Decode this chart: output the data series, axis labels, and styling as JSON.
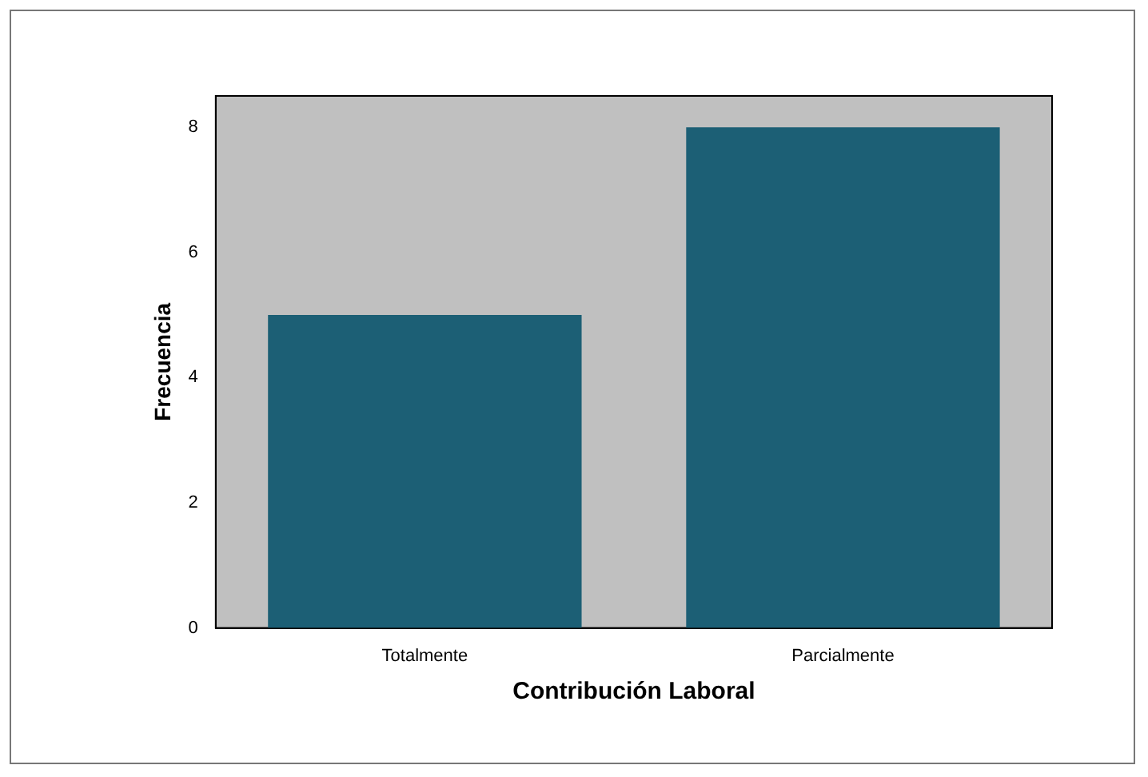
{
  "chart_data": {
    "type": "bar",
    "xlabel": "Contribución Laboral",
    "ylabel": "Frecuencia",
    "categories": [
      "Totalmente",
      "Parcialmente"
    ],
    "values": [
      5,
      8
    ],
    "color": "#1c5f75",
    "ylim": [
      0,
      8.5
    ],
    "yticks": [
      0,
      2,
      4,
      6,
      8
    ],
    "grid": false,
    "legend": false
  }
}
